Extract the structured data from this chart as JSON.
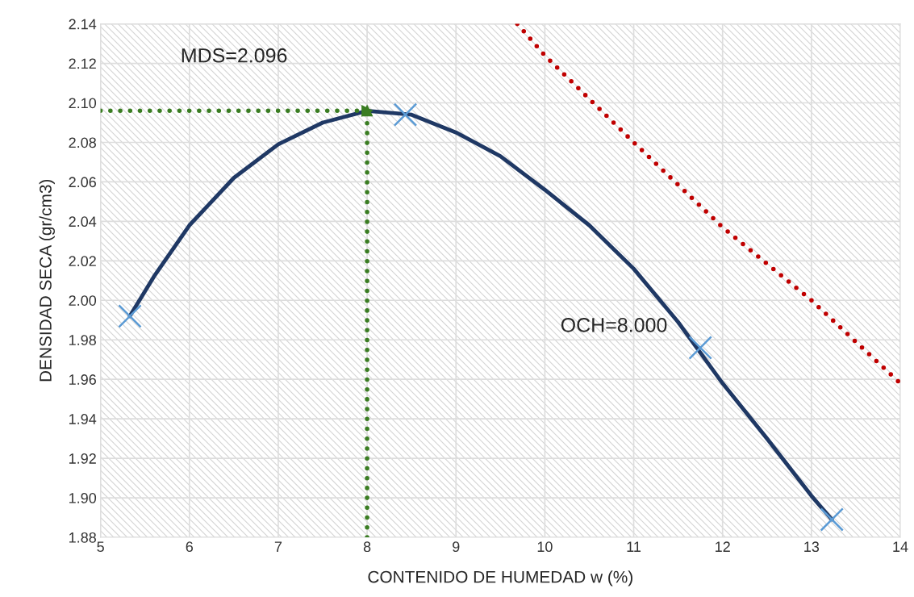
{
  "chart_data": {
    "type": "line",
    "xlabel": "CONTENIDO DE HUMEDAD w (%)",
    "ylabel": "DENSIDAD SECA (gr/cm3)",
    "annotations": [
      "MDS=2.096",
      "OCH=8.000"
    ],
    "series": [
      {
        "type": "line",
        "color": "#1f3864",
        "line_style": "solid",
        "marker": "none",
        "x": [
          5.33,
          5.6,
          6,
          6.5,
          7,
          7.5,
          8,
          8.5,
          9,
          9.5,
          10,
          10.5,
          11,
          11.5,
          12,
          12.5,
          13,
          13.23
        ],
        "values": [
          1.992,
          2.012,
          2.038,
          2.062,
          2.079,
          2.09,
          2.096,
          2.094,
          2.085,
          2.073,
          2.056,
          2.038,
          2.016,
          1.989,
          1.958,
          1.93,
          1.901,
          1.889
        ]
      },
      {
        "type": "scatter",
        "color": "#5b9bd5",
        "marker": "cross",
        "x": [
          5.33,
          8.43,
          11.75,
          13.23
        ],
        "values": [
          1.992,
          2.094,
          1.976,
          1.889
        ]
      },
      {
        "type": "line",
        "color": "#c00000",
        "line_style": "dotted",
        "marker": "none",
        "x": [
          9.69,
          10,
          11,
          12,
          13,
          14
        ],
        "values": [
          2.14,
          2.124,
          2.08,
          2.037,
          2.0,
          1.958
        ]
      },
      {
        "color": "#3a7d22",
        "line_style": "dotted",
        "x": [
          5,
          8
        ],
        "values": [
          2.096,
          2.096
        ]
      },
      {
        "color": "#3a7d22",
        "line_style": "dotted",
        "x": [
          8,
          8
        ],
        "values": [
          1.88,
          2.096
        ]
      }
    ],
    "xlim": [
      5,
      14
    ],
    "xticks": [
      5,
      6,
      7,
      8,
      9,
      10,
      11,
      12,
      13,
      14
    ],
    "ylim": [
      1.88,
      2.14
    ],
    "yticks": [
      {
        "value": 1.88,
        "label": "1.88"
      },
      {
        "value": 1.9,
        "label": "1.90"
      },
      {
        "value": 1.92,
        "label": "1.92"
      },
      {
        "value": 1.94,
        "label": "1.94"
      },
      {
        "value": 1.96,
        "label": "1.96"
      },
      {
        "value": 1.98,
        "label": "1.98"
      },
      {
        "value": 2.0,
        "label": "2.00"
      },
      {
        "value": 2.02,
        "label": "2.02"
      },
      {
        "value": 2.04,
        "label": "2.04"
      },
      {
        "value": 2.06,
        "label": "2.06"
      },
      {
        "value": 2.08,
        "label": "2.08"
      },
      {
        "value": 2.1,
        "label": "2.10"
      },
      {
        "value": 2.12,
        "label": "2.12"
      },
      {
        "value": 2.14,
        "label": "2.14"
      }
    ],
    "grid": true,
    "legend": false
  }
}
